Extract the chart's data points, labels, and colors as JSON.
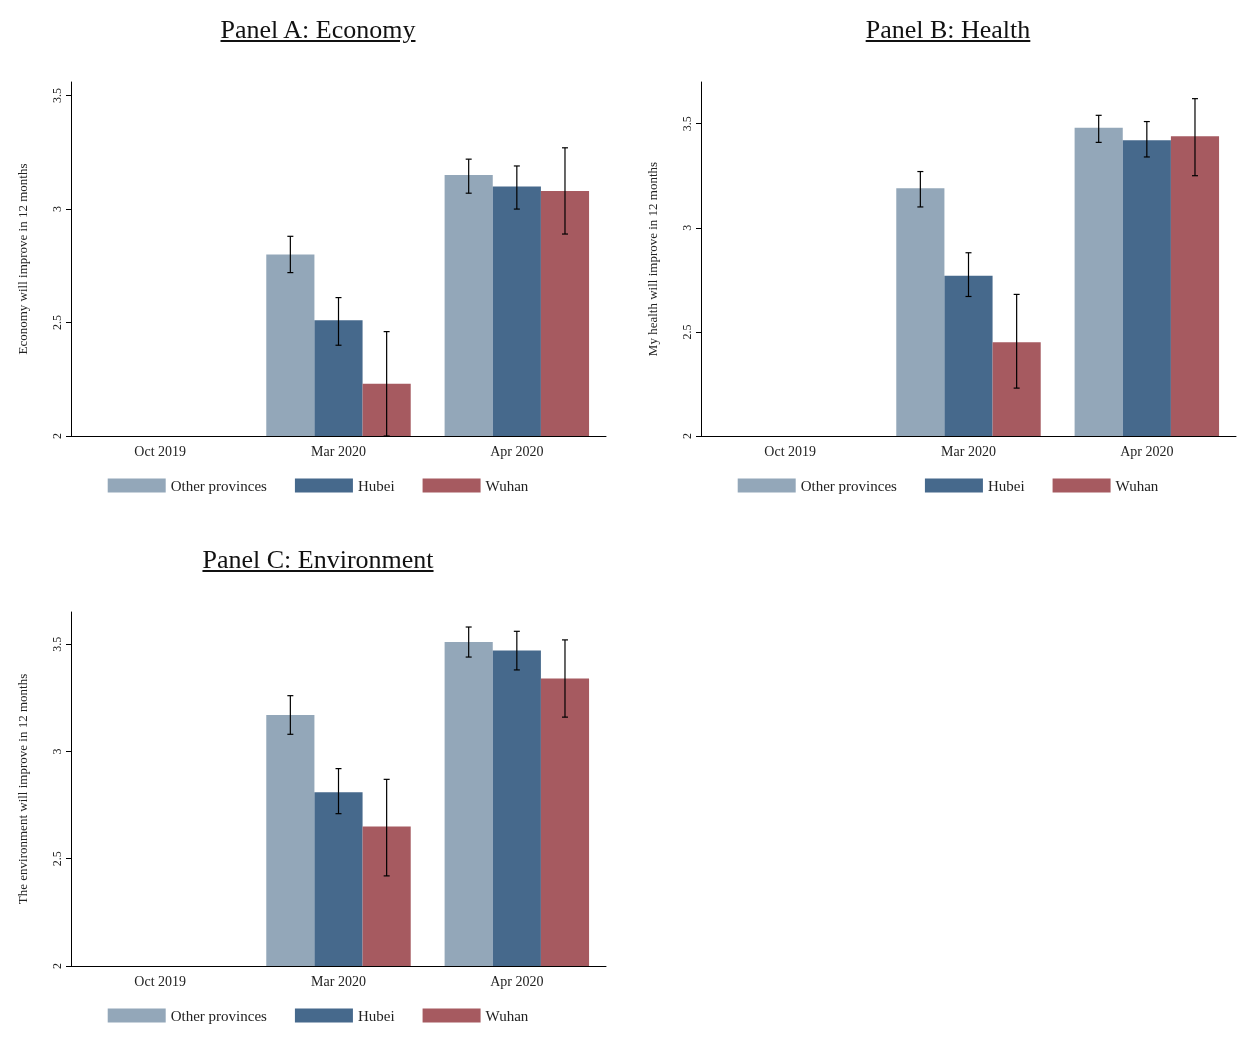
{
  "chart_data": [
    {
      "type": "bar",
      "title": "Panel A: Economy",
      "ylabel": "Economy will improve in 12 months",
      "categories": [
        "Oct 2019",
        "Mar 2020",
        "Apr 2020"
      ],
      "ylim": [
        2,
        3.56
      ],
      "yticks": [
        2,
        2.5,
        3,
        3.5
      ],
      "grid": false,
      "legend": "bottom",
      "series": [
        {
          "name": "Other provinces",
          "color": "#93a7b9",
          "values": [
            null,
            2.8,
            3.15
          ],
          "errors": [
            null,
            [
              2.72,
              2.88
            ],
            [
              3.07,
              3.22
            ]
          ]
        },
        {
          "name": "Hubei",
          "color": "#46698c",
          "values": [
            null,
            2.51,
            3.1
          ],
          "errors": [
            null,
            [
              2.4,
              2.61
            ],
            [
              3.0,
              3.19
            ]
          ]
        },
        {
          "name": "Wuhan",
          "color": "#a65a60",
          "values": [
            null,
            2.23,
            3.08
          ],
          "errors": [
            null,
            [
              2.0,
              2.46
            ],
            [
              2.89,
              3.27
            ]
          ]
        }
      ]
    },
    {
      "type": "bar",
      "title": "Panel B: Health",
      "ylabel": "My health will improve in 12 months",
      "categories": [
        "Oct 2019",
        "Mar 2020",
        "Apr 2020"
      ],
      "ylim": [
        2,
        3.7
      ],
      "yticks": [
        2,
        2.5,
        3,
        3.5
      ],
      "grid": false,
      "legend": "bottom",
      "series": [
        {
          "name": "Other provinces",
          "color": "#93a7b9",
          "values": [
            null,
            3.19,
            3.48
          ],
          "errors": [
            null,
            [
              3.1,
              3.27
            ],
            [
              3.41,
              3.54
            ]
          ]
        },
        {
          "name": "Hubei",
          "color": "#46698c",
          "values": [
            null,
            2.77,
            3.42
          ],
          "errors": [
            null,
            [
              2.67,
              2.88
            ],
            [
              3.34,
              3.51
            ]
          ]
        },
        {
          "name": "Wuhan",
          "color": "#a65a60",
          "values": [
            null,
            2.45,
            3.44
          ],
          "errors": [
            null,
            [
              2.23,
              2.68
            ],
            [
              3.25,
              3.62
            ]
          ]
        }
      ]
    },
    {
      "type": "bar",
      "title": "Panel C: Environment",
      "ylabel": "The environment will improve in 12 months",
      "categories": [
        "Oct 2019",
        "Mar 2020",
        "Apr 2020"
      ],
      "ylim": [
        2,
        3.65
      ],
      "yticks": [
        2,
        2.5,
        3,
        3.5
      ],
      "grid": false,
      "legend": "bottom",
      "series": [
        {
          "name": "Other provinces",
          "color": "#93a7b9",
          "values": [
            null,
            3.17,
            3.51
          ],
          "errors": [
            null,
            [
              3.08,
              3.26
            ],
            [
              3.44,
              3.58
            ]
          ]
        },
        {
          "name": "Hubei",
          "color": "#46698c",
          "values": [
            null,
            2.81,
            3.47
          ],
          "errors": [
            null,
            [
              2.71,
              2.92
            ],
            [
              3.38,
              3.56
            ]
          ]
        },
        {
          "name": "Wuhan",
          "color": "#a65a60",
          "values": [
            null,
            2.65,
            3.34
          ],
          "errors": [
            null,
            [
              2.42,
              2.87
            ],
            [
              3.16,
              3.52
            ]
          ]
        }
      ]
    }
  ]
}
